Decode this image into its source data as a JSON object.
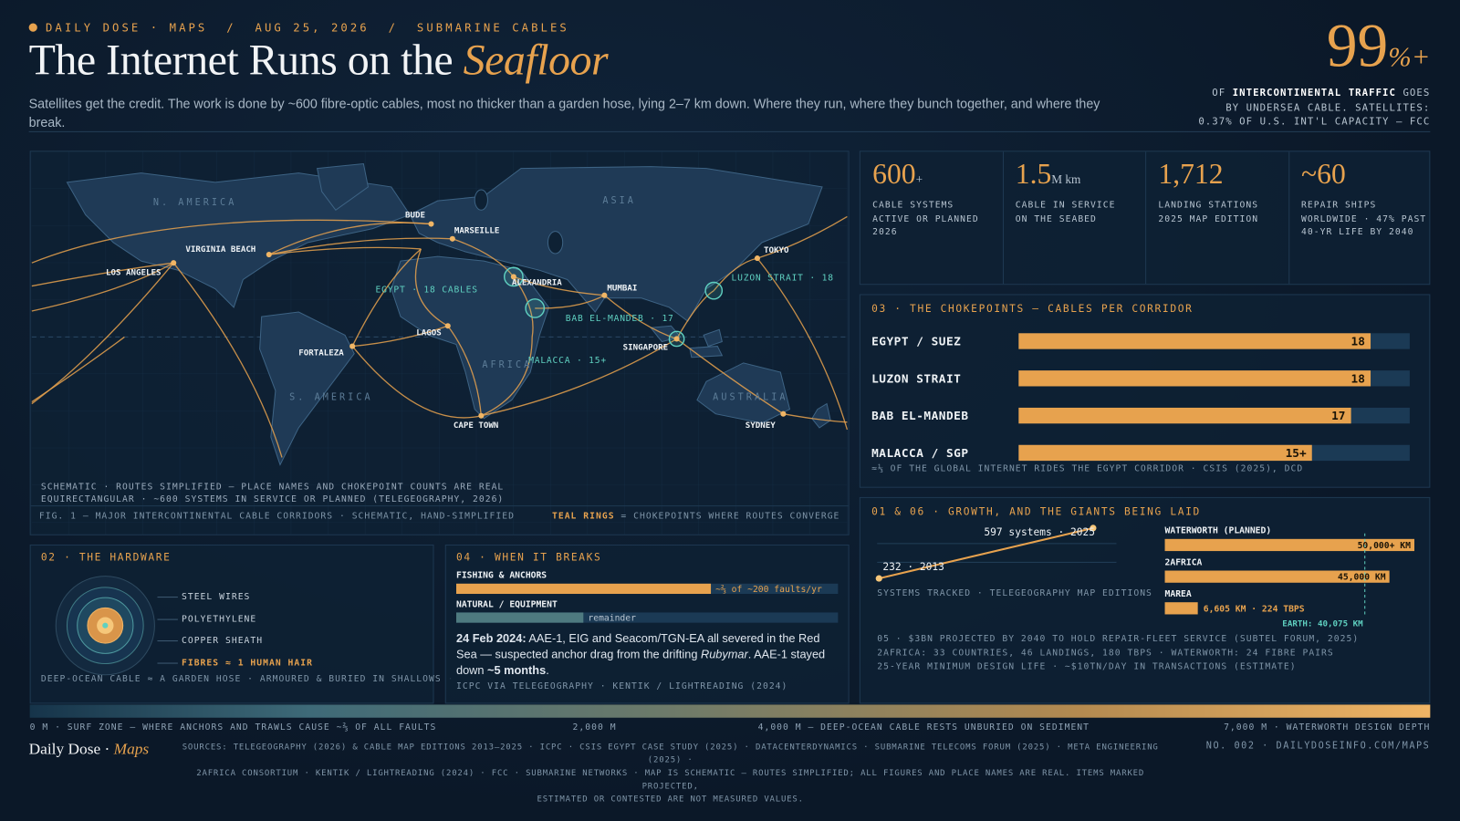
{
  "header": {
    "kicker": "DAILY DOSE · MAPS  /  AUG 25, 2026  /  SUBMARINE CABLES",
    "title": "The Internet Runs on the ",
    "title_em": "Seafloor",
    "subtitle": "Satellites get the credit. The work is done by ~600 fibre-optic cables, most no thicker than a garden hose, lying 2–7 km down. Where they run, where they bunch together, and where they break."
  },
  "headline": {
    "value": "99",
    "unit": "%+",
    "pre": "OF ",
    "strong": "INTERCONTINENTAL TRAFFIC",
    "post": " GOES",
    "lines": [
      "BY UNDERSEA CABLE. SATELLITES:",
      "0.37% OF U.S. INT'L CAPACITY — FCC"
    ]
  },
  "stats": [
    {
      "value": "600",
      "unit": "+",
      "label": [
        "CABLE SYSTEMS",
        "ACTIVE OR PLANNED",
        "2026"
      ]
    },
    {
      "value": "1.5",
      "unit": "M km",
      "label": [
        "CABLE IN SERVICE",
        "ON THE SEABED"
      ]
    },
    {
      "value": "1,712",
      "label": [
        "LANDING STATIONS",
        "2025 MAP EDITION"
      ]
    },
    {
      "value": "~60",
      "label": [
        "REPAIR SHIPS",
        "WORLDWIDE · 47% PAST",
        "40-YR LIFE BY 2040"
      ]
    }
  ],
  "map": {
    "regions": [
      "N. AMERICA",
      "ASIA",
      "AFRICA",
      "S. AMERICA",
      "AUSTRALIA"
    ],
    "places": [
      "LOS ANGELES",
      "VIRGINIA BEACH",
      "BUDE",
      "MARSEILLE",
      "ALEXANDRIA",
      "MUMBAI",
      "SINGAPORE",
      "TOKYO",
      "FORTALEZA",
      "LAGOS",
      "CAPE TOWN",
      "SYDNEY"
    ],
    "chokepoints": [
      "EGYPT · 18 CABLES",
      "BAB EL-MANDEB · 17",
      "LUZON STRAIT · 18",
      "MALACCA · 15+"
    ],
    "note": [
      "SCHEMATIC · ROUTES SIMPLIFIED — PLACE NAMES AND CHOKEPOINT COUNTS ARE REAL",
      "EQUIRECTANGULAR · ~600 SYSTEMS IN SERVICE OR PLANNED (TELEGEOGRAPHY, 2026)"
    ],
    "caption": "FIG. 1 — MAJOR INTERCONTINENTAL CABLE CORRIDORS · SCHEMATIC, HAND-SIMPLIFIED",
    "legend_key": "TEAL RINGS",
    "legend_text": " = CHOKEPOINTS WHERE ROUTES CONVERGE"
  },
  "chokepoints": {
    "type": "bar",
    "title": "03 · THE CHOKEPOINTS — CABLES PER CORRIDOR",
    "categories": [
      "EGYPT / SUEZ",
      "LUZON STRAIT",
      "BAB EL-MANDEB",
      "MALACCA / SGP"
    ],
    "values": [
      18,
      18,
      17,
      15
    ],
    "value_labels": [
      "18",
      "18",
      "17",
      "15+"
    ],
    "xlim": [
      0,
      20
    ],
    "color": "#e7a24e",
    "footnote": "≈⅓ OF THE GLOBAL INTERNET RIDES THE EGYPT CORRIDOR · CSIS (2025), DCD"
  },
  "growth": {
    "title": "01 & 06 · GROWTH, AND THE GIANTS BEING LAID",
    "line": {
      "type": "line",
      "x": [
        2013,
        2025
      ],
      "values": [
        232,
        597
      ],
      "value_labels": [
        "232 · 2013",
        "597 systems · 2025"
      ],
      "xlim": [
        2013,
        2025
      ],
      "ylim": [
        100,
        700
      ],
      "color": "#e7a24e",
      "caption": "SYSTEMS TRACKED · TELEGEOGRAPHY MAP EDITIONS"
    },
    "cables": {
      "type": "bar",
      "categories": [
        "WATERWORTH (PLANNED)",
        "2AFRICA",
        "MAREA"
      ],
      "values": [
        50000,
        45000,
        6605
      ],
      "value_labels": [
        "50,000+ KM",
        "45,000 KM",
        "6,605 KM · 224 TBPS"
      ],
      "xlim": [
        0,
        50000
      ],
      "color": "#e7a24e",
      "earth": {
        "value": 40075,
        "label": "EARTH: 40,075 KM"
      }
    },
    "notes": [
      "05 · $3BN PROJECTED BY 2040 TO HOLD REPAIR-FLEET SERVICE (SUBTEL FORUM, 2025)",
      "2AFRICA: 33 COUNTRIES, 46 LANDINGS, 180 TBPS · WATERWORTH: 24 FIBRE PAIRS",
      "25-YEAR MINIMUM DESIGN LIFE · ~$10TN/DAY IN TRANSACTIONS (ESTIMATE)"
    ]
  },
  "hardware": {
    "title": "02 · THE HARDWARE",
    "layers": [
      "STEEL WIRES",
      "POLYETHYLENE",
      "COPPER SHEATH",
      "FIBRES ≈ 1 HUMAN HAIR"
    ],
    "caption": "DEEP-OCEAN CABLE ≈ A GARDEN HOSE · ARMOURED & BURIED IN SHALLOWS ·"
  },
  "breaks": {
    "type": "bar",
    "title": "04 · WHEN IT BREAKS",
    "categories": [
      "FISHING & ANCHORS",
      "NATURAL / EQUIPMENT"
    ],
    "values": [
      66.7,
      33.3
    ],
    "value_labels": [
      "~⅔ of ~200 faults/yr",
      "remainder"
    ],
    "xlim": [
      0,
      100
    ],
    "colors": [
      "#e7a24e",
      "#4e7a80"
    ],
    "story": {
      "date": "24 Feb 2024:",
      "text1": " AAE-1, EIG and Seacom/TGN-EA all severed in the Red Sea — suspected anchor drag from the drifting ",
      "ship": "Rubymar",
      "text2": ". AAE-1 stayed down ",
      "duration": "~5 months",
      "end": "."
    },
    "source": "ICPC VIA TELEGEOGRAPHY · KENTIK / LIGHTREADING (2024)"
  },
  "depth": {
    "labels": [
      "0 M · SURF ZONE — WHERE ANCHORS AND TRAWLS CAUSE ~⅔ OF ALL FAULTS",
      "2,000 M",
      "4,000 M — DEEP-OCEAN CABLE RESTS UNBURIED ON SEDIMENT",
      "7,000 M · WATERWORTH DESIGN DEPTH"
    ]
  },
  "footer": {
    "brand": "Daily Dose",
    "sep": " · ",
    "brand_em": "Maps",
    "sources": [
      "SOURCES: TELEGEOGRAPHY (2026) & CABLE MAP EDITIONS 2013–2025 · ICPC · CSIS EGYPT CASE STUDY (2025) · DATACENTERDYNAMICS · SUBMARINE TELECOMS FORUM (2025) · META ENGINEERING (2025) ·",
      "2AFRICA CONSORTIUM · KENTIK / LIGHTREADING (2024) · FCC · SUBMARINE NETWORKS · MAP IS SCHEMATIC — ROUTES SIMPLIFIED; ALL FIGURES AND PLACE NAMES ARE REAL. ITEMS MARKED PROJECTED,",
      "ESTIMATED OR CONTESTED ARE NOT MEASURED VALUES."
    ],
    "colophon": "NO. 002 · DAILYDOSEINFO.COM/MAPS"
  }
}
